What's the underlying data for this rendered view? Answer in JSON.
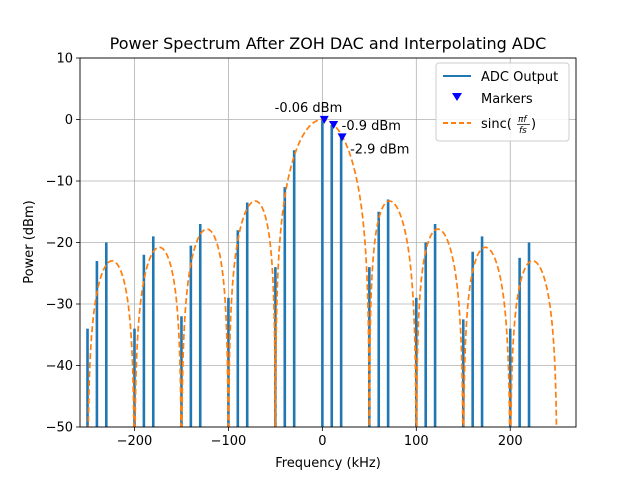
{
  "chart_data": {
    "type": "line",
    "title": "Power Spectrum After ZOH DAC and Interpolating ADC",
    "xlabel": "Frequency (kHz)",
    "ylabel": "Power (dBm)",
    "xlim": [
      -258,
      270
    ],
    "ylim": [
      -50,
      10
    ],
    "xticks": [
      -200,
      -100,
      0,
      100,
      200
    ],
    "xtick_labels": [
      "−200",
      "−100",
      "0",
      "100",
      "200"
    ],
    "yticks": [
      -50,
      -40,
      -30,
      -20,
      -10,
      0,
      10
    ],
    "ytick_labels": [
      "−50",
      "−40",
      "−30",
      "−20",
      "−10",
      "0",
      "10"
    ],
    "grid": true,
    "legend_position": "top-right",
    "series": [
      {
        "name": "ADC Output",
        "kind": "stems",
        "color": "#1f77b4",
        "x": [
          -250,
          -240,
          -230,
          -200,
          -190,
          -180,
          -150,
          -140,
          -130,
          -100,
          -90,
          -80,
          -50,
          -40,
          -30,
          0,
          10,
          20,
          50,
          60,
          70,
          100,
          110,
          120,
          150,
          160,
          170,
          200,
          210,
          220
        ],
        "values": [
          -34,
          -23,
          -20,
          -34,
          -22,
          -19,
          -32,
          -20.5,
          -17,
          -29,
          -18,
          -13.5,
          -24,
          -11,
          -5,
          -0.06,
          -0.9,
          -2.9,
          -24,
          -15,
          -13,
          -29,
          -20,
          -17,
          -32.5,
          -21.5,
          -19,
          -34,
          -22.5,
          -20
        ]
      },
      {
        "name": "Markers",
        "kind": "markers",
        "color": "#0000ff",
        "x": [
          2,
          12,
          21
        ],
        "values": [
          -0.06,
          -0.9,
          -2.9
        ]
      },
      {
        "name": "sinc(πf/fs)",
        "kind": "sinc",
        "color": "#ff7f0e",
        "x_start": -250,
        "x_end": 250,
        "null_spacing": 50,
        "peak": 0,
        "floor": -50
      }
    ],
    "annotations": [
      {
        "text": "-0.06 dBm",
        "x": 2,
        "y": -0.06
      },
      {
        "text": "-0.9 dBm",
        "x": 12,
        "y": -0.9
      },
      {
        "text": "-2.9 dBm",
        "x": 21,
        "y": -2.9
      }
    ]
  }
}
